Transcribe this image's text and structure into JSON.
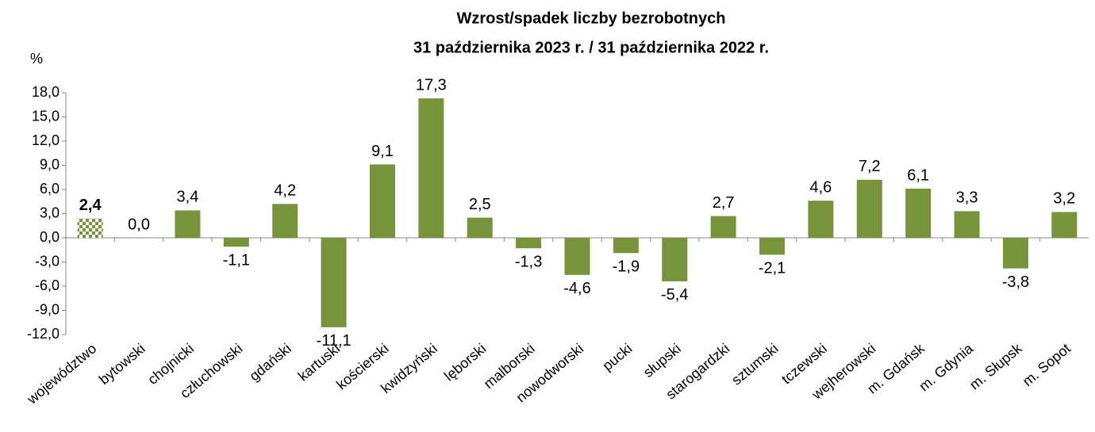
{
  "chart_data": {
    "type": "bar",
    "title": [
      "Wzrost/spadek liczby bezrobotnych",
      "31 października 2023 r. / 31 października 2022 r."
    ],
    "y_label": "%",
    "categories": [
      "województwo",
      "bytowski",
      "chojnicki",
      "człuchowski",
      "gdański",
      "kartuski",
      "kościerski",
      "kwidzyński",
      "lęborski",
      "malborski",
      "nowodworski",
      "pucki",
      "słupski",
      "starogardzki",
      "sztumski",
      "tczewski",
      "wejherowski",
      "m. Gdańsk",
      "m. Gdynia",
      "m. Słupsk",
      "m. Sopot"
    ],
    "values": [
      2.4,
      0.0,
      3.4,
      -1.1,
      4.2,
      -11.1,
      9.1,
      17.3,
      2.5,
      -1.3,
      -4.6,
      -1.9,
      -5.4,
      2.7,
      -2.1,
      4.6,
      7.2,
      6.1,
      3.3,
      -3.8,
      3.2
    ],
    "value_labels": [
      "2,4",
      "0,0",
      "3,4",
      "-1,1",
      "4,2",
      "-11,1",
      "9,1",
      "17,3",
      "2,5",
      "-1,3",
      "-4,6",
      "-1,9",
      "-5,4",
      "2,7",
      "-2,1",
      "4,6",
      "7,2",
      "6,1",
      "3,3",
      "-3,8",
      "3,2"
    ],
    "color": "#77933c",
    "highlight_index": 0,
    "ylim": [
      -12,
      18
    ],
    "yticks": [
      {
        "value": 18,
        "label": "18,0"
      },
      {
        "value": 15,
        "label": "15,0"
      },
      {
        "value": 12,
        "label": "12,0"
      },
      {
        "value": 9,
        "label": "9,0"
      },
      {
        "value": 6,
        "label": "6,0"
      },
      {
        "value": 3,
        "label": "3,0"
      },
      {
        "value": 0,
        "label": "0,0"
      },
      {
        "value": -3,
        "label": "-3,0"
      },
      {
        "value": -6,
        "label": "-6,0"
      },
      {
        "value": -9,
        "label": "-9,0"
      },
      {
        "value": -12,
        "label": "-12,0"
      }
    ]
  }
}
